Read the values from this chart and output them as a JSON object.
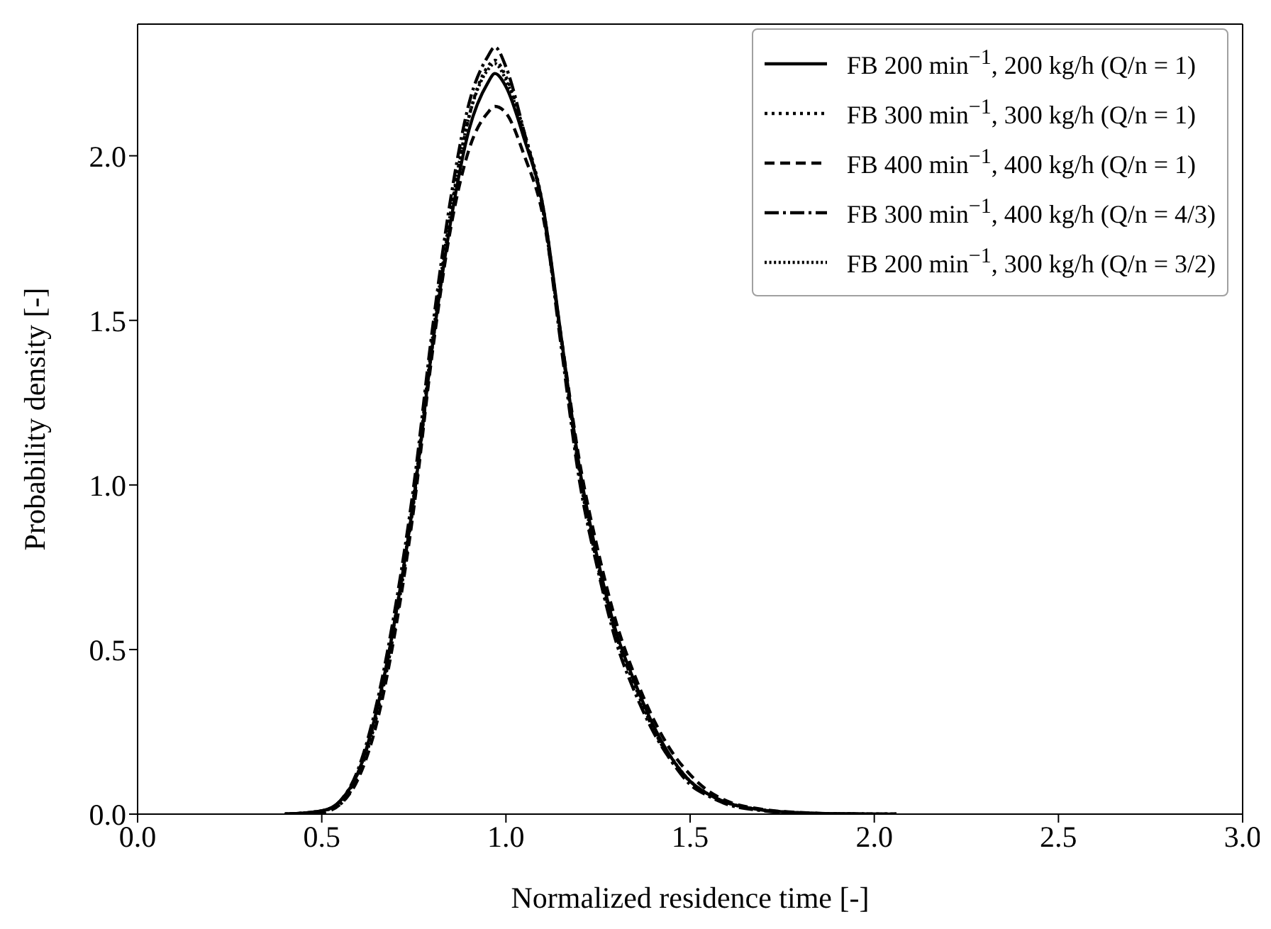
{
  "chart_data": {
    "type": "line",
    "xlabel": "Normalized residence time [-]",
    "ylabel": "Probability density [-]",
    "x": [
      0.4,
      0.5,
      0.55,
      0.6,
      0.65,
      0.7,
      0.75,
      0.8,
      0.85,
      0.9,
      0.95,
      0.97,
      1.0,
      1.05,
      1.1,
      1.15,
      1.2,
      1.25,
      1.3,
      1.35,
      1.4,
      1.45,
      1.5,
      1.55,
      1.6,
      1.7,
      1.8,
      1.9,
      2.06
    ],
    "series": [
      {
        "name": "FB 200 min$^{−1}$, 200 kg/h (Q/n = 1)",
        "color": "#000000",
        "line_style": "solid",
        "values": [
          0,
          0.01,
          0.04,
          0.13,
          0.32,
          0.6,
          0.96,
          1.42,
          1.8,
          2.08,
          2.22,
          2.25,
          2.21,
          2.05,
          1.85,
          1.45,
          1.05,
          0.77,
          0.55,
          0.4,
          0.27,
          0.17,
          0.1,
          0.06,
          0.035,
          0.012,
          0.004,
          0.001,
          0
        ]
      },
      {
        "name": "FB 300 min$^{−1}$, 300 kg/h (Q/n = 1)",
        "color": "#000000",
        "line_style": "dotted",
        "values": [
          0,
          0.01,
          0.03,
          0.12,
          0.3,
          0.58,
          0.95,
          1.42,
          1.82,
          2.12,
          2.27,
          2.29,
          2.24,
          2.07,
          1.85,
          1.44,
          1.03,
          0.75,
          0.54,
          0.39,
          0.26,
          0.16,
          0.1,
          0.06,
          0.035,
          0.012,
          0.004,
          0.001,
          0
        ]
      },
      {
        "name": "FB 400 min$^{−1}$, 400 kg/h (Q/n = 1)",
        "color": "#000000",
        "line_style": "dashed",
        "values": [
          0,
          0.005,
          0.03,
          0.11,
          0.28,
          0.56,
          0.93,
          1.4,
          1.78,
          2.02,
          2.13,
          2.15,
          2.13,
          2.0,
          1.82,
          1.45,
          1.07,
          0.8,
          0.58,
          0.42,
          0.29,
          0.19,
          0.12,
          0.07,
          0.04,
          0.014,
          0.005,
          0.001,
          0
        ]
      },
      {
        "name": "FB 300 min$^{−1}$, 400 kg/h (Q/n = 4/3)",
        "color": "#000000",
        "line_style": "dashdot",
        "values": [
          0,
          0.01,
          0.04,
          0.14,
          0.34,
          0.63,
          1.0,
          1.47,
          1.87,
          2.16,
          2.3,
          2.33,
          2.27,
          2.07,
          1.84,
          1.42,
          1.01,
          0.74,
          0.52,
          0.37,
          0.25,
          0.16,
          0.09,
          0.055,
          0.03,
          0.01,
          0.003,
          0.001,
          0
        ]
      },
      {
        "name": "FB 200 min$^{−1}$, 300 kg/h (Q/n = 3/2)",
        "color": "#000000",
        "line_style": "dotted",
        "values": [
          0,
          0.01,
          0.035,
          0.13,
          0.31,
          0.6,
          0.97,
          1.44,
          1.83,
          2.12,
          2.26,
          2.28,
          2.23,
          2.06,
          1.84,
          1.44,
          1.04,
          0.76,
          0.54,
          0.39,
          0.26,
          0.17,
          0.1,
          0.06,
          0.035,
          0.012,
          0.004,
          0.001,
          0
        ]
      }
    ],
    "xlim": [
      0,
      3
    ],
    "xticks": [
      {
        "value": 0,
        "label": "0.0"
      },
      {
        "value": 0.5,
        "label": "0.5"
      },
      {
        "value": 1,
        "label": "1.0"
      },
      {
        "value": 1.5,
        "label": "1.5"
      },
      {
        "value": 2,
        "label": "2.0"
      },
      {
        "value": 2.5,
        "label": "2.5"
      },
      {
        "value": 3,
        "label": "3.0"
      }
    ],
    "ylim": [
      0,
      2.4
    ],
    "yticks": [
      {
        "value": 0,
        "label": "0.0"
      },
      {
        "value": 0.5,
        "label": "0.5"
      },
      {
        "value": 1,
        "label": "1.0"
      },
      {
        "value": 1.5,
        "label": "1.5"
      },
      {
        "value": 2,
        "label": "2.0"
      }
    ],
    "legend": "top right",
    "grid": false,
    "marker": "none"
  }
}
